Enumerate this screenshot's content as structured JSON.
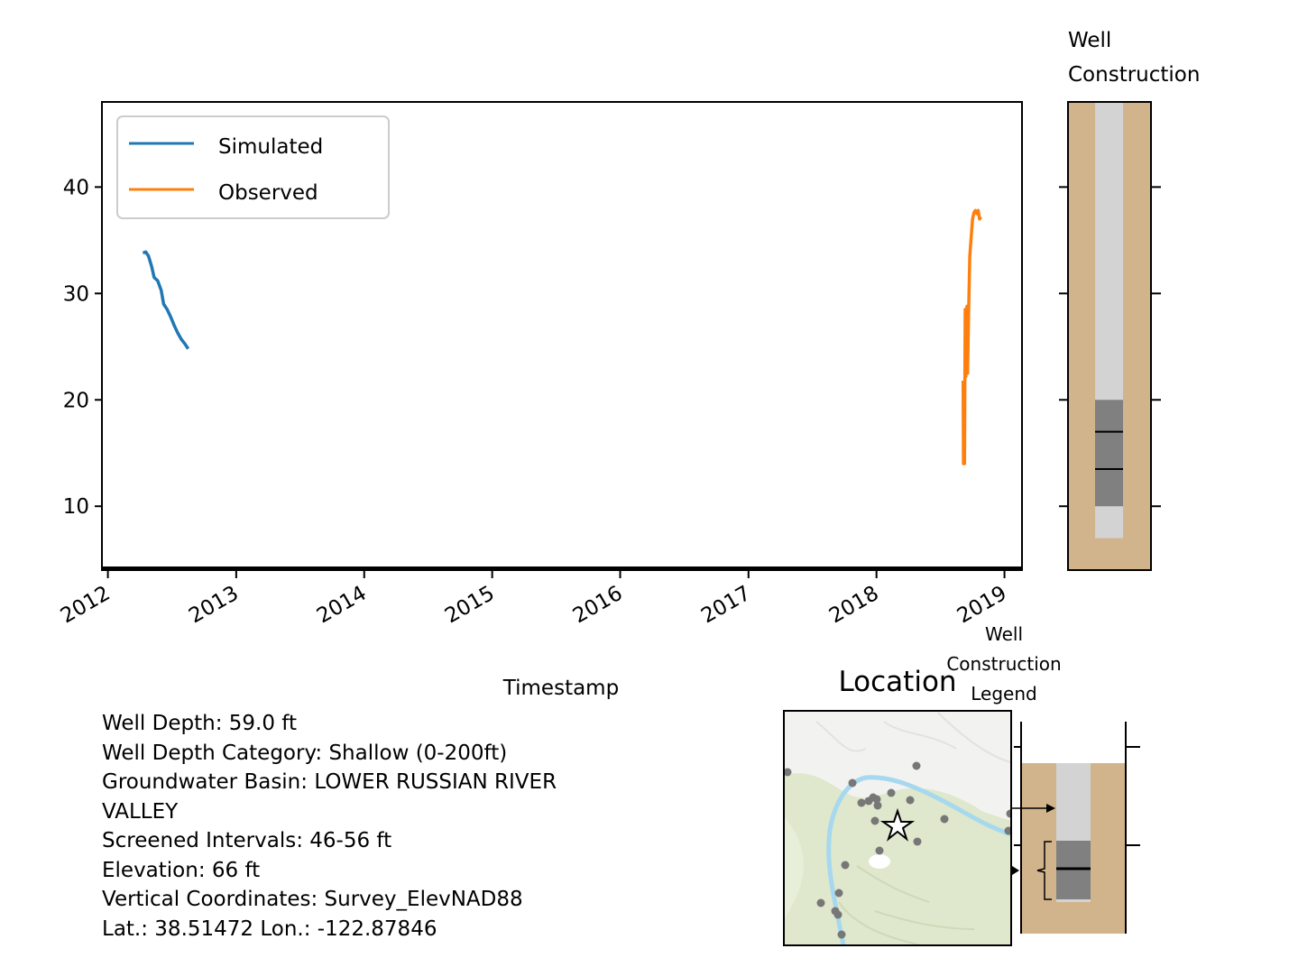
{
  "chart_data": [
    {
      "type": "line",
      "title": "",
      "xlabel": "Timestamp",
      "ylabel": "",
      "x_ticks": [
        "2012",
        "2013",
        "2014",
        "2015",
        "2016",
        "2017",
        "2018",
        "2019"
      ],
      "y_ticks": [
        10,
        20,
        30,
        40
      ],
      "xlim": [
        "2011-12-15",
        "2019-02-20"
      ],
      "ylim": [
        4,
        48
      ],
      "legend_position": "top-left",
      "series": [
        {
          "name": "Simulated",
          "color": "#1f77b4",
          "points": [
            [
              "2012-04-10",
              33.8
            ],
            [
              "2012-04-18",
              33.9
            ],
            [
              "2012-04-26",
              33.5
            ],
            [
              "2012-05-05",
              32.5
            ],
            [
              "2012-05-12",
              31.5
            ],
            [
              "2012-05-22",
              31.2
            ],
            [
              "2012-06-01",
              30.3
            ],
            [
              "2012-06-08",
              29.0
            ],
            [
              "2012-06-18",
              28.5
            ],
            [
              "2012-06-28",
              27.8
            ],
            [
              "2012-07-08",
              27.0
            ],
            [
              "2012-07-18",
              26.3
            ],
            [
              "2012-07-28",
              25.7
            ],
            [
              "2012-08-07",
              25.3
            ],
            [
              "2012-08-17",
              24.8
            ]
          ]
        },
        {
          "name": "Observed",
          "color": "#ff7f0e",
          "points": [
            [
              "2018-09-05",
              21.8
            ],
            [
              "2018-09-06",
              14.0
            ],
            [
              "2018-09-09",
              14.0
            ],
            [
              "2018-09-11",
              28.5
            ],
            [
              "2018-09-13",
              22.2
            ],
            [
              "2018-09-16",
              28.8
            ],
            [
              "2018-09-18",
              22.5
            ],
            [
              "2018-09-21",
              28.5
            ],
            [
              "2018-09-24",
              33.5
            ],
            [
              "2018-09-28",
              35.2
            ],
            [
              "2018-10-02",
              37.0
            ],
            [
              "2018-10-06",
              37.6
            ],
            [
              "2018-10-10",
              37.8
            ],
            [
              "2018-10-14",
              37.5
            ],
            [
              "2018-10-18",
              37.8
            ],
            [
              "2018-10-22",
              37.0
            ],
            [
              "2018-10-26",
              37.2
            ]
          ]
        }
      ]
    },
    {
      "type": "diagram",
      "title": "Well\nConstruction",
      "ylim": [
        4,
        48
      ],
      "casing_bottom": 7,
      "screen_top": 20,
      "screen_bottom": 10,
      "screen_marks": [
        17,
        13.5
      ],
      "colors": {
        "soil": "#d2b48c",
        "casing": "#d3d3d3",
        "screen": "#808080"
      }
    }
  ],
  "location": {
    "title": "Location",
    "map_colors": {
      "land": "#f2f2f0",
      "vegetation": "#dfe8cc",
      "river": "#a6d8ef",
      "wells": "#777777"
    }
  },
  "legend_inset": {
    "title": "Well\nConstruction\nLegend"
  },
  "info": {
    "well_depth": "Well Depth: 59.0 ft",
    "depth_category": "Well Depth Category: Shallow (0-200ft)",
    "basin_line1": "Groundwater Basin: LOWER RUSSIAN RIVER",
    "basin_line2": "VALLEY",
    "screened": "Screened Intervals: 46-56 ft",
    "elevation": "Elevation: 66 ft",
    "vertical": "Vertical Coordinates: Survey_ElevNAD88",
    "latlon": "Lat.: 38.51472 Lon.: -122.87846"
  }
}
